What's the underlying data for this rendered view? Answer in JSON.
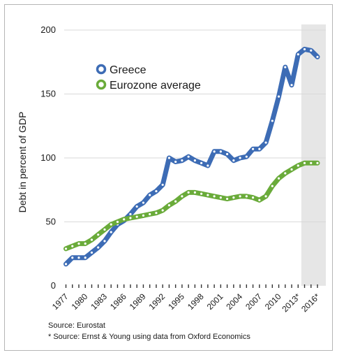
{
  "chart_data": {
    "type": "line",
    "ylabel": "Debt in percent of GDP",
    "xlabel": "",
    "ylim": [
      0,
      200
    ],
    "y_ticks": [
      "0",
      "50",
      "100",
      "150",
      "200"
    ],
    "x_tick_labels": [
      "1977",
      "1980",
      "1983",
      "1986",
      "1989",
      "1992",
      "1995",
      "1998",
      "2001",
      "2004",
      "2007",
      "2010",
      "2013*",
      "2016*"
    ],
    "forecast_shaded_from": 2013.5,
    "grid": true,
    "legend_placement": "top-left",
    "x": [
      1977,
      1978,
      1979,
      1980,
      1981,
      1982,
      1983,
      1984,
      1985,
      1986,
      1987,
      1988,
      1989,
      1990,
      1991,
      1992,
      1993,
      1994,
      1995,
      1996,
      1997,
      1998,
      1999,
      2000,
      2001,
      2002,
      2003,
      2004,
      2005,
      2006,
      2007,
      2008,
      2009,
      2010,
      2011,
      2012,
      2013,
      2014,
      2015,
      2016
    ],
    "series": [
      {
        "name": "Greece",
        "color": "#3d6cb5",
        "values": [
          17,
          22,
          22,
          22,
          26,
          30,
          35,
          42,
          48,
          51,
          56,
          62,
          65,
          71,
          74,
          79,
          100,
          97,
          98,
          101,
          98,
          96,
          94,
          105,
          105,
          103,
          98,
          100,
          101,
          107,
          107,
          112,
          129,
          148,
          171,
          157,
          181,
          185,
          184,
          179
        ]
      },
      {
        "name": "Eurozone average",
        "color": "#6aab3a",
        "values": [
          29,
          31,
          33,
          33,
          36,
          40,
          44,
          48,
          50,
          52,
          53,
          54,
          55,
          56,
          57,
          59,
          63,
          66,
          70,
          73,
          73,
          72,
          71,
          70,
          69,
          68,
          69,
          70,
          70,
          69,
          67,
          70,
          78,
          84,
          88,
          91,
          94,
          96,
          96,
          96
        ]
      }
    ]
  },
  "sources": {
    "line1": "Source: Eurostat",
    "line2": "* Source: Ernst & Young using data from Oxford Economics"
  }
}
